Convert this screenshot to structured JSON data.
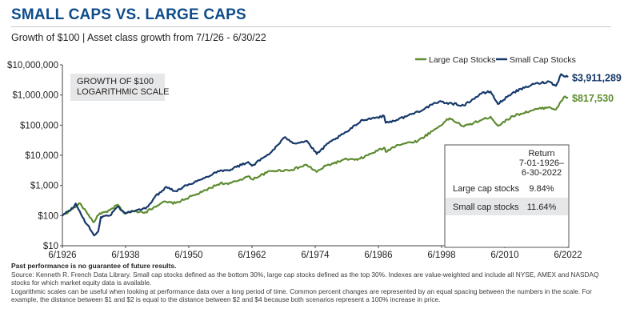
{
  "header": {
    "title": "SMALL CAPS VS. LARGE CAPS",
    "subtitle": "Growth of $100 | Asset class growth from 7/1/26 - 6/30/22"
  },
  "chart_data": {
    "type": "line",
    "y_scale": "log",
    "ylim": [
      10,
      10000000
    ],
    "y_tick_labels": [
      "$10,000,000",
      "$1,000,000",
      "$100,000",
      "$10,000",
      "$1,000",
      "$100",
      "$10"
    ],
    "x_tick_labels": [
      "6/1926",
      "6/1938",
      "6/1950",
      "6/1962",
      "6/1974",
      "6/1986",
      "6/1998",
      "6/2010",
      "6/2022"
    ],
    "xlim": [
      1926.5,
      2022.5
    ],
    "grid": false,
    "legend_position": "top-right",
    "annotation": [
      "GROWTH OF $100",
      "LOGARITHMIC SCALE"
    ],
    "series": [
      {
        "name": "Large Cap Stocks",
        "color": "#5e8c31",
        "end_label": "$817,530",
        "points": [
          [
            1926.5,
            100
          ],
          [
            1928.5,
            170
          ],
          [
            1929.7,
            260
          ],
          [
            1931.0,
            140
          ],
          [
            1932.4,
            60
          ],
          [
            1933.6,
            120
          ],
          [
            1935.0,
            130
          ],
          [
            1937.0,
            230
          ],
          [
            1938.2,
            120
          ],
          [
            1940.0,
            140
          ],
          [
            1942.3,
            130
          ],
          [
            1945.5,
            280
          ],
          [
            1948.0,
            260
          ],
          [
            1950.5,
            400
          ],
          [
            1953.0,
            600
          ],
          [
            1956.5,
            1200
          ],
          [
            1958.0,
            1100
          ],
          [
            1961.8,
            2000
          ],
          [
            1962.5,
            1600
          ],
          [
            1966.0,
            3000
          ],
          [
            1970.0,
            3300
          ],
          [
            1972.9,
            4800
          ],
          [
            1974.8,
            2800
          ],
          [
            1976.5,
            4500
          ],
          [
            1980.5,
            7500
          ],
          [
            1982.5,
            7000
          ],
          [
            1987.6,
            18000
          ],
          [
            1987.9,
            13000
          ],
          [
            1990.0,
            22000
          ],
          [
            1994.0,
            30000
          ],
          [
            1998.0,
            90000
          ],
          [
            2000.0,
            170000
          ],
          [
            2002.7,
            90000
          ],
          [
            2007.8,
            190000
          ],
          [
            2009.2,
            95000
          ],
          [
            2012.0,
            200000
          ],
          [
            2016.0,
            320000
          ],
          [
            2018.9,
            400000
          ],
          [
            2020.2,
            330000
          ],
          [
            2021.9,
            900000
          ],
          [
            2022.5,
            817530
          ]
        ]
      },
      {
        "name": "Small Cap Stocks",
        "color": "#16386a",
        "end_label": "$3,911,289",
        "points": [
          [
            1926.5,
            100
          ],
          [
            1928.5,
            180
          ],
          [
            1929.0,
            250
          ],
          [
            1930.3,
            90
          ],
          [
            1932.5,
            22
          ],
          [
            1933.3,
            30
          ],
          [
            1933.8,
            90
          ],
          [
            1935.5,
            100
          ],
          [
            1937.0,
            200
          ],
          [
            1938.5,
            120
          ],
          [
            1940.5,
            150
          ],
          [
            1942.3,
            170
          ],
          [
            1944.0,
            400
          ],
          [
            1946.2,
            900
          ],
          [
            1948.0,
            650
          ],
          [
            1950.5,
            1100
          ],
          [
            1953.0,
            1600
          ],
          [
            1956.0,
            3000
          ],
          [
            1958.0,
            3200
          ],
          [
            1961.8,
            6000
          ],
          [
            1962.5,
            4500
          ],
          [
            1966.0,
            12000
          ],
          [
            1968.8,
            40000
          ],
          [
            1970.5,
            25000
          ],
          [
            1972.9,
            30000
          ],
          [
            1974.8,
            11000
          ],
          [
            1977.0,
            25000
          ],
          [
            1980.5,
            60000
          ],
          [
            1983.5,
            150000
          ],
          [
            1987.6,
            200000
          ],
          [
            1987.9,
            120000
          ],
          [
            1990.0,
            150000
          ],
          [
            1994.0,
            280000
          ],
          [
            1998.0,
            600000
          ],
          [
            1999.5,
            550000
          ],
          [
            2002.7,
            450000
          ],
          [
            2006.0,
            1100000
          ],
          [
            2007.8,
            1300000
          ],
          [
            2009.2,
            500000
          ],
          [
            2012.0,
            1200000
          ],
          [
            2016.0,
            2300000
          ],
          [
            2018.9,
            2800000
          ],
          [
            2020.2,
            2000000
          ],
          [
            2021.2,
            4900000
          ],
          [
            2022.5,
            3911289
          ]
        ]
      }
    ],
    "return_table": {
      "header": [
        "Return",
        "7-01-1926–",
        "6-30-2022"
      ],
      "rows": [
        {
          "label": "Large cap stocks",
          "value": "9.84%"
        },
        {
          "label": "Small cap stocks",
          "value": "11.64%"
        }
      ]
    }
  },
  "footnotes": {
    "disclaimer": "Past performance is no guarantee of future results.",
    "source": "Source: Kenneth R. French Data Library. Small cap stocks defined as the bottom 30%, large cap stocks defined as the top 30%. Indexes are value-weighted and include all NYSE, AMEX and NASDAQ stocks for which market equity data is available.",
    "log_note": "Logarithmic scales can be useful when looking at performance data over a long period of time. Common percent changes are represented by an equal spacing between the numbers in the scale. For example, the distance between $1 and $2 is equal to the distance between $2 and $4 because both scenarios represent a 100% increase in price."
  }
}
